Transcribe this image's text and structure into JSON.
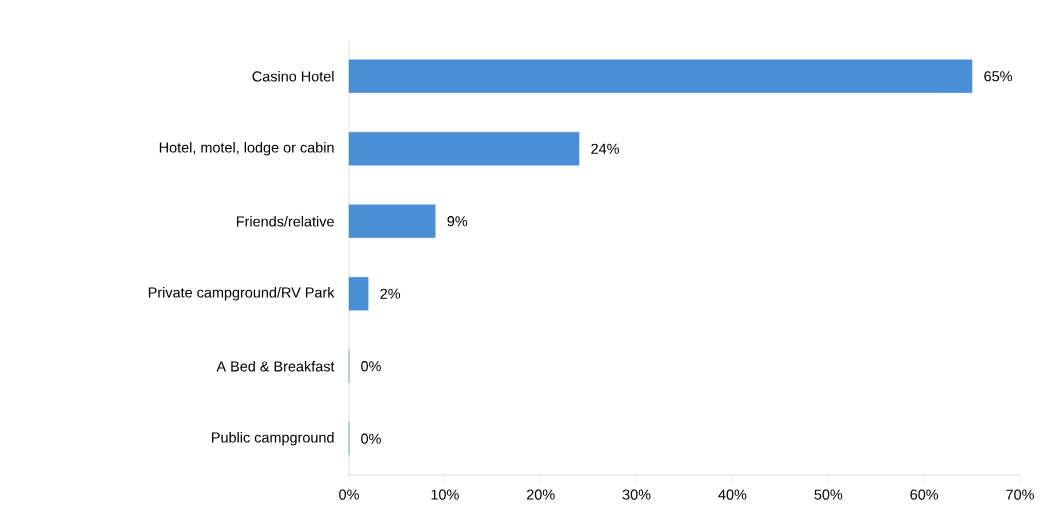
{
  "chart_data": {
    "type": "bar",
    "orientation": "horizontal",
    "categories": [
      "Casino Hotel",
      "Hotel, motel, lodge or cabin",
      "Friends/relative",
      "Private campground/RV Park",
      "A Bed & Breakfast",
      "Public campground"
    ],
    "values": [
      65,
      24,
      9,
      2,
      0,
      0
    ],
    "value_labels": [
      "65%",
      "24%",
      "9%",
      "2%",
      "0%",
      "0%"
    ],
    "color": "#4a8fd6",
    "xlim": [
      0,
      70
    ],
    "xticks": [
      {
        "value": 0,
        "label": "0%"
      },
      {
        "value": 10,
        "label": "10%"
      },
      {
        "value": 20,
        "label": "20%"
      },
      {
        "value": 30,
        "label": "30%"
      },
      {
        "value": 40,
        "label": "40%"
      },
      {
        "value": 50,
        "label": "50%"
      },
      {
        "value": 60,
        "label": "60%"
      },
      {
        "value": 70,
        "label": "70%"
      }
    ],
    "grid": false
  }
}
